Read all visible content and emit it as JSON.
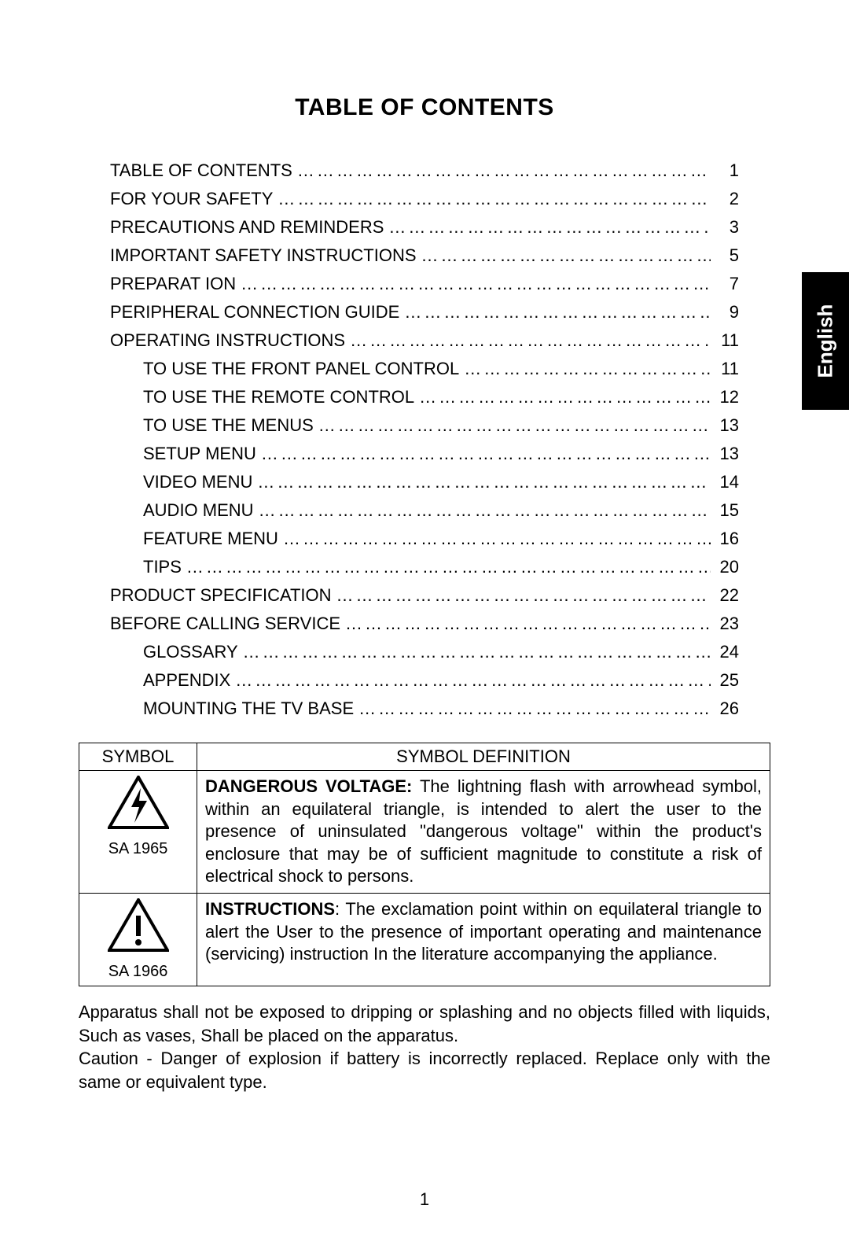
{
  "title": "TABLE OF CONTENTS",
  "language_tab": "English",
  "page_number": "1",
  "dot_fill": "…………………………………………………………………………………………………",
  "toc": [
    {
      "label": "TABLE OF CONTENTS",
      "page": "1",
      "indent": false
    },
    {
      "label": "FOR YOUR SAFETY",
      "page": "2",
      "indent": false
    },
    {
      "label": "PRECAUTIONS AND REMINDERS",
      "page": "3",
      "indent": false
    },
    {
      "label": "IMPORTANT SAFETY INSTRUCTIONS",
      "page": "5",
      "indent": false
    },
    {
      "label": "PREPARAT ION",
      "page": "7",
      "indent": false
    },
    {
      "label": "PERIPHERAL CONNECTION GUIDE",
      "page": "9",
      "indent": false
    },
    {
      "label": "OPERATING INSTRUCTIONS",
      "page": "11",
      "indent": false
    },
    {
      "label": "TO USE THE FRONT PANEL CONTROL",
      "page": "11",
      "indent": true
    },
    {
      "label": "TO USE THE REMOTE CONTROL",
      "page": "12",
      "indent": true
    },
    {
      "label": "TO USE THE MENUS",
      "page": "13",
      "indent": true
    },
    {
      "label": "SETUP MENU",
      "page": "13",
      "indent": true
    },
    {
      "label": "VIDEO MENU",
      "page": "14",
      "indent": true
    },
    {
      "label": "AUDIO MENU",
      "page": "15",
      "indent": true
    },
    {
      "label": "FEATURE MENU",
      "page": "16",
      "indent": true
    },
    {
      "label": "TIPS",
      "page": "20",
      "indent": true
    },
    {
      "label": "PRODUCT SPECIFICATION",
      "page": "22",
      "indent": false
    },
    {
      "label": "BEFORE CALLING SERVICE",
      "page": "23",
      "indent": false
    },
    {
      "label": "GLOSSARY",
      "page": "24",
      "indent": true
    },
    {
      "label": "APPENDIX",
      "page": "25",
      "indent": true
    },
    {
      "label": "MOUNTING THE TV BASE",
      "page": "26",
      "indent": true
    }
  ],
  "symbol_table": {
    "header_symbol": "SYMBOL",
    "header_definition": "SYMBOL DEFINITION",
    "rows": [
      {
        "code": "SA 1965",
        "lead": "DANGEROUS VOLTAGE:",
        "text": " The lightning flash with arrowhead symbol, within an equilateral triangle, is intended to alert the user to the presence of uninsulated \"dangerous voltage\" within the product's enclosure that may be of sufficient magnitude to constitute a risk of electrical shock to persons."
      },
      {
        "code": "SA 1966",
        "lead": "INSTRUCTIONS",
        "text": ": The exclamation point within on equilateral triangle to alert the User to the presence of important operating and maintenance (servicing) instruction In the literature accompanying the appliance."
      }
    ]
  },
  "footnotes": [
    "Apparatus shall not be exposed to dripping or splashing and no objects filled with liquids, Such as vases, Shall be placed on the apparatus.",
    "Caution - Danger of explosion if battery is incorrectly replaced. Replace only with the same or equivalent type."
  ]
}
